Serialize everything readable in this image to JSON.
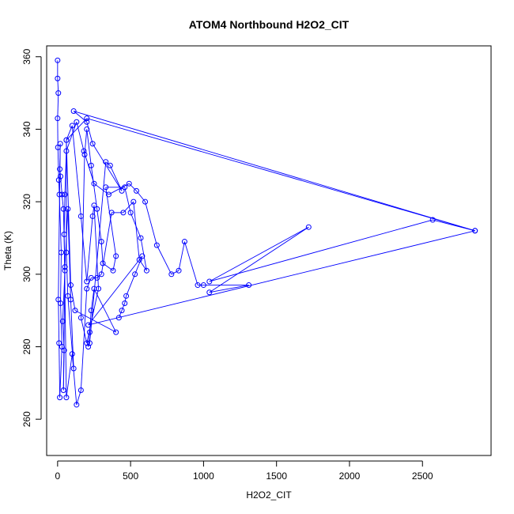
{
  "chart_data": {
    "type": "line",
    "title": "ATOM4 Northbound H2O2_CIT",
    "xlabel": "H2O2_CIT",
    "ylabel": "Theta (K)",
    "xlim": [
      -75,
      2970
    ],
    "ylim": [
      250,
      363
    ],
    "xticks": [
      0,
      500,
      1000,
      1500,
      2000,
      2500
    ],
    "yticks": [
      260,
      280,
      300,
      320,
      340,
      360
    ],
    "grid": false,
    "color": "#0000ff",
    "series": [
      {
        "points": [
          [
            0,
            359
          ],
          [
            0,
            354
          ],
          [
            5,
            350
          ],
          [
            0,
            343
          ],
          [
            2,
            335
          ],
          [
            8,
            326
          ],
          [
            12,
            322
          ],
          [
            25,
            306
          ],
          [
            20,
            292
          ],
          [
            30,
            280
          ],
          [
            15,
            266
          ],
          [
            10,
            281
          ],
          [
            5,
            293
          ],
          [
            18,
            336
          ],
          [
            15,
            329
          ],
          [
            20,
            327
          ],
          [
            30,
            322
          ],
          [
            40,
            318
          ],
          [
            50,
            301
          ],
          [
            35,
            287
          ],
          [
            45,
            279
          ],
          [
            40,
            268
          ],
          [
            50,
            302
          ],
          [
            70,
            318
          ],
          [
            90,
            293
          ],
          [
            110,
            274
          ],
          [
            70,
            294
          ],
          [
            60,
            306
          ],
          [
            60,
            337
          ],
          [
            100,
            341
          ],
          [
            160,
            316
          ],
          [
            200,
            298
          ],
          [
            240,
            316
          ],
          [
            250,
            319
          ],
          [
            280,
            296
          ],
          [
            200,
            281
          ],
          [
            160,
            288
          ],
          [
            185,
            333
          ],
          [
            200,
            340
          ],
          [
            230,
            330
          ],
          [
            270,
            318
          ],
          [
            300,
            309
          ],
          [
            310,
            303
          ],
          [
            380,
            301
          ],
          [
            400,
            305
          ],
          [
            330,
            324
          ],
          [
            460,
            324
          ],
          [
            500,
            317
          ],
          [
            570,
            310
          ],
          [
            610,
            301
          ],
          [
            560,
            304
          ],
          [
            520,
            320
          ],
          [
            450,
            317
          ],
          [
            370,
            317
          ],
          [
            300,
            300
          ],
          [
            270,
            299
          ],
          [
            230,
            299
          ],
          [
            200,
            296
          ],
          [
            160,
            268
          ],
          [
            130,
            264
          ],
          [
            100,
            278
          ],
          [
            60,
            266
          ],
          [
            45,
            311
          ],
          [
            50,
            322
          ],
          [
            60,
            334
          ],
          [
            130,
            342
          ],
          [
            180,
            334
          ],
          [
            250,
            325
          ],
          [
            350,
            322
          ],
          [
            490,
            325
          ],
          [
            540,
            323
          ],
          [
            600,
            320
          ],
          [
            680,
            308
          ],
          [
            780,
            300
          ],
          [
            830,
            301
          ],
          [
            870,
            309
          ],
          [
            960,
            297
          ],
          [
            1000,
            297
          ],
          [
            1310,
            297
          ],
          [
            1040,
            295
          ],
          [
            1720,
            313
          ],
          [
            1040,
            298
          ],
          [
            2570,
            315
          ],
          [
            2860,
            312
          ],
          [
            200,
            343
          ],
          [
            60,
            337
          ],
          [
            90,
            297
          ],
          [
            120,
            290
          ],
          [
            400,
            284
          ],
          [
            250,
            296
          ],
          [
            230,
            290
          ],
          [
            220,
            284
          ],
          [
            210,
            280
          ],
          [
            220,
            281
          ],
          [
            330,
            331
          ],
          [
            360,
            330
          ],
          [
            440,
            323
          ],
          [
            240,
            336
          ],
          [
            200,
            342
          ],
          [
            110,
            345
          ],
          [
            2860,
            312
          ],
          [
            210,
            286
          ],
          [
            580,
            305
          ],
          [
            530,
            300
          ],
          [
            470,
            294
          ],
          [
            460,
            292
          ],
          [
            440,
            290
          ],
          [
            420,
            288
          ]
        ]
      }
    ]
  }
}
